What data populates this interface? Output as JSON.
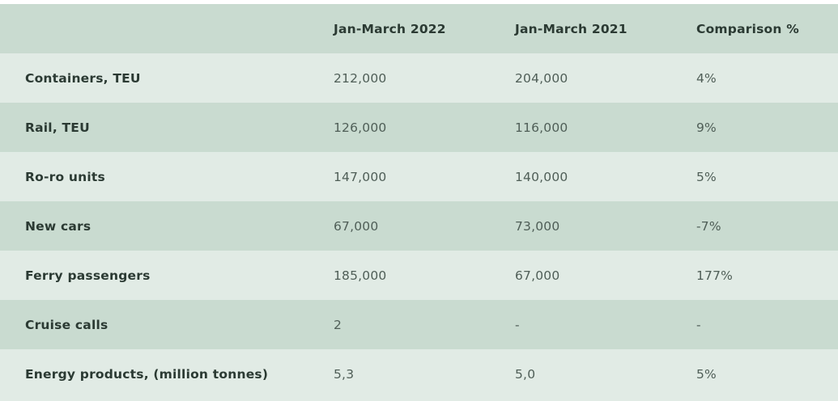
{
  "table": {
    "headers": [
      "",
      "Jan-March 2022",
      "Jan-March 2021",
      "Comparison %"
    ],
    "rows": [
      {
        "label": "Containers, TEU",
        "y2022": "212,000",
        "y2021": "204,000",
        "comparison": "4%"
      },
      {
        "label": "Rail, TEU",
        "y2022": "126,000",
        "y2021": "116,000",
        "comparison": "9%"
      },
      {
        "label": "Ro-ro units",
        "y2022": "147,000",
        "y2021": "140,000",
        "comparison": "5%"
      },
      {
        "label": "New cars",
        "y2022": "67,000",
        "y2021": "73,000",
        "comparison": "-7%"
      },
      {
        "label": "Ferry passengers",
        "y2022": "185,000",
        "y2021": "67,000",
        "comparison": "177%"
      },
      {
        "label": "Cruise calls",
        "y2022": "2",
        "y2021": "-",
        "comparison": "-"
      },
      {
        "label": "Energy products, (million tonnes)",
        "y2022": "5,3",
        "y2021": "5,0",
        "comparison": "5%"
      }
    ]
  },
  "colors": {
    "row_dark": "#c9dbd0",
    "row_light": "#e1ebe5",
    "text_label": "#2b3a33",
    "text_value": "#4f5e57"
  }
}
